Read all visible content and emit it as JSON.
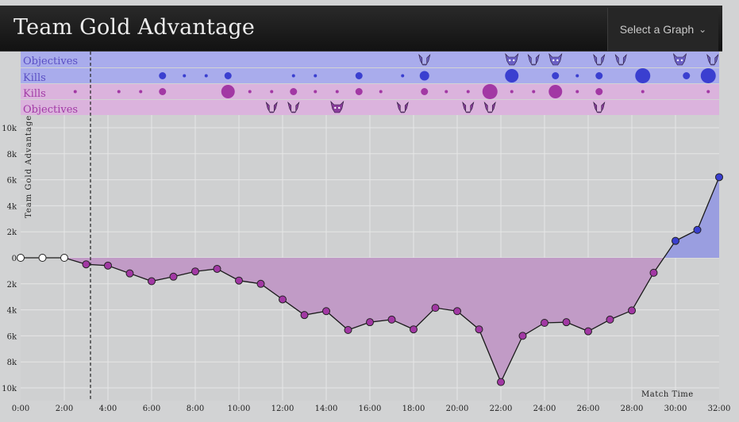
{
  "header": {
    "title": "Team Gold Advantage",
    "select_label": "Select a Graph"
  },
  "colors": {
    "blue": "#3a3fd0",
    "blue_fill": "#9a9ee0",
    "blue_lane": "#a9acec",
    "purple": "#a238a4",
    "purple_fill": "#c19bc6",
    "purple_lane": "#dbb3dd",
    "icon_blue": "#6a5fc4",
    "icon_purple": "#8a3c9c"
  },
  "lanes": {
    "blue_objectives_label": "Objectives",
    "blue_kills_label": "Kills",
    "purple_kills_label": "Kills",
    "purple_objectives_label": "Objectives"
  },
  "chart_data": {
    "type": "area",
    "ylabel": "Team Gold Advantage",
    "xlabel": "Match Time",
    "x_ticks": [
      "0:00",
      "2:00",
      "4:00",
      "6:00",
      "8:00",
      "10:00",
      "12:00",
      "14:00",
      "16:00",
      "18:00",
      "20:00",
      "22:00",
      "24:00",
      "26:00",
      "28:00",
      "30:00",
      "32:00"
    ],
    "y_ticks": [
      "10k",
      "8k",
      "6k",
      "4k",
      "2k",
      "0",
      "2k",
      "4k",
      "6k",
      "8k",
      "10k"
    ],
    "ylim": [
      -10500,
      10500
    ],
    "xlim": [
      0,
      32
    ],
    "marker_line_minute": 3.2,
    "points": [
      {
        "x": 0,
        "y": 0
      },
      {
        "x": 1,
        "y": 0
      },
      {
        "x": 2,
        "y": 0
      },
      {
        "x": 3,
        "y": -500
      },
      {
        "x": 4,
        "y": -600
      },
      {
        "x": 5,
        "y": -1200
      },
      {
        "x": 6,
        "y": -1800
      },
      {
        "x": 7,
        "y": -1450
      },
      {
        "x": 8,
        "y": -1050
      },
      {
        "x": 9,
        "y": -850
      },
      {
        "x": 10,
        "y": -1750
      },
      {
        "x": 11,
        "y": -2000
      },
      {
        "x": 12,
        "y": -3200
      },
      {
        "x": 13,
        "y": -4400
      },
      {
        "x": 14,
        "y": -4100
      },
      {
        "x": 15,
        "y": -5550
      },
      {
        "x": 16,
        "y": -4950
      },
      {
        "x": 17,
        "y": -4750
      },
      {
        "x": 18,
        "y": -5500
      },
      {
        "x": 19,
        "y": -3850
      },
      {
        "x": 20,
        "y": -4100
      },
      {
        "x": 21,
        "y": -5500
      },
      {
        "x": 22,
        "y": -9550
      },
      {
        "x": 23,
        "y": -6000
      },
      {
        "x": 24,
        "y": -5000
      },
      {
        "x": 25,
        "y": -4950
      },
      {
        "x": 26,
        "y": -5650
      },
      {
        "x": 27,
        "y": -4750
      },
      {
        "x": 28,
        "y": -4050
      },
      {
        "x": 29,
        "y": -1150
      },
      {
        "x": 30,
        "y": 1300
      },
      {
        "x": 31,
        "y": 2150
      },
      {
        "x": 32,
        "y": 6200
      }
    ],
    "blue_kills": [
      {
        "t": 6.5,
        "n": 1
      },
      {
        "t": 7.5,
        "n": 0
      },
      {
        "t": 8.5,
        "n": 0
      },
      {
        "t": 9.5,
        "n": 1
      },
      {
        "t": 12.5,
        "n": 0
      },
      {
        "t": 13.5,
        "n": 0
      },
      {
        "t": 15.5,
        "n": 1
      },
      {
        "t": 17.5,
        "n": 0
      },
      {
        "t": 18.5,
        "n": 2
      },
      {
        "t": 22.5,
        "n": 3
      },
      {
        "t": 24.5,
        "n": 1
      },
      {
        "t": 25.5,
        "n": 0
      },
      {
        "t": 26.5,
        "n": 1
      },
      {
        "t": 28.5,
        "n": 4
      },
      {
        "t": 30.5,
        "n": 1
      },
      {
        "t": 31.5,
        "n": 4
      }
    ],
    "purple_kills": [
      {
        "t": 2.5,
        "n": 0
      },
      {
        "t": 4.5,
        "n": 0
      },
      {
        "t": 5.5,
        "n": 0
      },
      {
        "t": 6.5,
        "n": 1
      },
      {
        "t": 9.5,
        "n": 3
      },
      {
        "t": 10.5,
        "n": 0
      },
      {
        "t": 11.5,
        "n": 0
      },
      {
        "t": 12.5,
        "n": 1
      },
      {
        "t": 13.5,
        "n": 0
      },
      {
        "t": 14.5,
        "n": 0
      },
      {
        "t": 15.5,
        "n": 1
      },
      {
        "t": 16.5,
        "n": 0
      },
      {
        "t": 18.5,
        "n": 1
      },
      {
        "t": 19.5,
        "n": 0
      },
      {
        "t": 20.5,
        "n": 0
      },
      {
        "t": 21.5,
        "n": 4
      },
      {
        "t": 22.5,
        "n": 0
      },
      {
        "t": 23.5,
        "n": 0
      },
      {
        "t": 24.5,
        "n": 3
      },
      {
        "t": 25.5,
        "n": 0
      },
      {
        "t": 26.5,
        "n": 1
      },
      {
        "t": 28.5,
        "n": 0
      },
      {
        "t": 31.5,
        "n": 0
      }
    ],
    "blue_objectives": [
      {
        "t": 18.5,
        "icon": "drake-icon"
      },
      {
        "t": 22.5,
        "icon": "baron-icon"
      },
      {
        "t": 23.5,
        "icon": "drake-icon"
      },
      {
        "t": 24.5,
        "icon": "baron-icon"
      },
      {
        "t": 26.5,
        "icon": "drake-icon"
      },
      {
        "t": 27.5,
        "icon": "drake-icon"
      },
      {
        "t": 30.2,
        "icon": "baron-icon"
      },
      {
        "t": 31.7,
        "icon": "drake-icon"
      }
    ],
    "purple_objectives": [
      {
        "t": 11.5,
        "icon": "drake-icon"
      },
      {
        "t": 12.5,
        "icon": "drake-icon"
      },
      {
        "t": 14.5,
        "icon": "baron-icon"
      },
      {
        "t": 17.5,
        "icon": "drake-icon"
      },
      {
        "t": 20.5,
        "icon": "drake-icon"
      },
      {
        "t": 21.5,
        "icon": "drake-icon"
      },
      {
        "t": 26.5,
        "icon": "drake-icon"
      }
    ]
  }
}
